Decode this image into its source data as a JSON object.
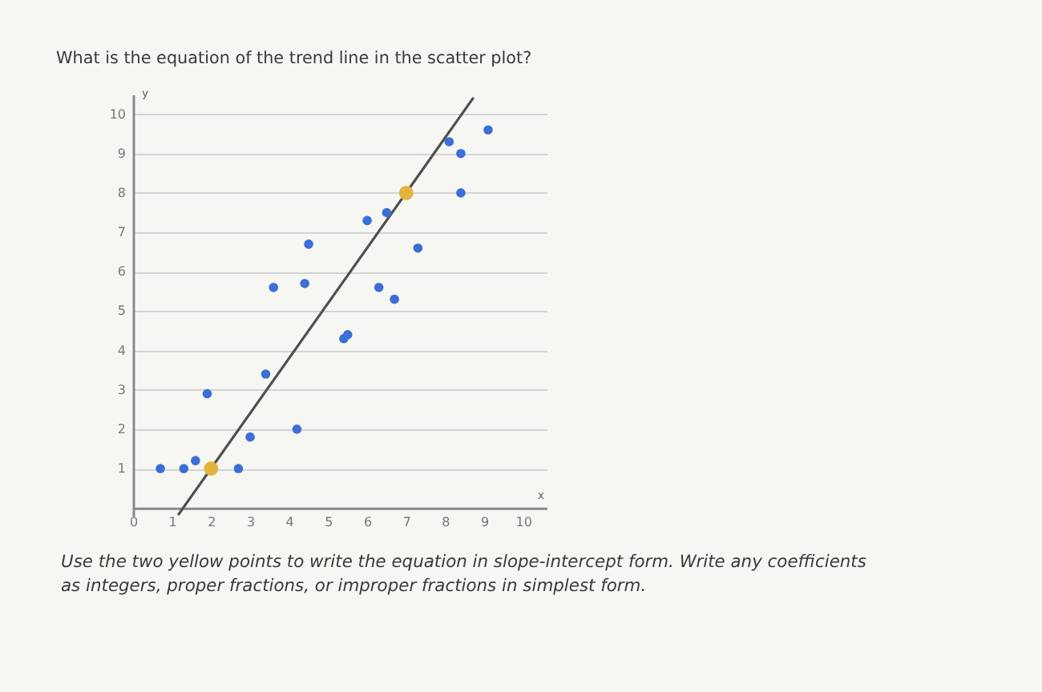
{
  "chart_data": {
    "type": "scatter",
    "title": "What is the equation of the trend line in the scatter plot?",
    "xlabel": "x",
    "ylabel": "y",
    "annotations": [
      "Use the two yellow points to write the equation in slope-intercept form. Write any coefficients as integers, proper fractions, or improper fractions in simplest form."
    ],
    "series": [
      {
        "type": "line",
        "color": "#505050",
        "marker": "none",
        "x": [
          1.17,
          8.71
        ],
        "values": [
          -0.16,
          10.4
        ]
      },
      {
        "color": "#3b6fd6",
        "x": [
          0.7,
          1.3,
          1.6,
          1.9,
          2.7,
          3.0,
          3.4,
          3.6,
          4.2,
          4.4,
          4.5,
          5.4,
          5.5,
          6.0,
          6.3,
          6.5,
          6.7,
          7.3,
          8.1,
          8.4,
          8.4,
          9.1
        ],
        "values": [
          1.0,
          1.0,
          1.2,
          2.9,
          1.0,
          1.8,
          3.4,
          5.6,
          2.0,
          5.7,
          6.7,
          4.3,
          4.4,
          7.3,
          5.6,
          7.5,
          5.3,
          6.6,
          9.3,
          9.0,
          8.0,
          9.6
        ]
      },
      {
        "color": "#e2b43c",
        "x": [
          2,
          7
        ],
        "values": [
          1,
          8
        ]
      }
    ],
    "xlim": [
      0,
      10.6
    ],
    "ylim": [
      -0.2,
      10.5
    ],
    "xticks": [
      0,
      1,
      2,
      3,
      4,
      5,
      6,
      7,
      8,
      9,
      10
    ],
    "yticks": [
      1,
      2,
      3,
      4,
      5,
      6,
      7,
      8,
      9,
      10
    ],
    "grid": "y",
    "marker": "circle"
  }
}
